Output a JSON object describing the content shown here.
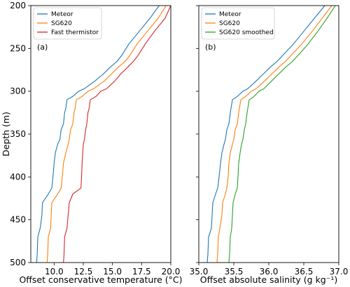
{
  "chart_data": [
    {
      "type": "line",
      "panel_label": "(a)",
      "xlabel": "Offset conservative temperature (°C)",
      "ylabel": "Depth (m)",
      "xlim": [
        8.0,
        20.0
      ],
      "ylim": [
        500,
        200
      ],
      "y_inverted": true,
      "xticks": [
        "10.0",
        "12.5",
        "15.0",
        "17.5",
        "20.0"
      ],
      "xtick_values": [
        10.0,
        12.5,
        15.0,
        17.5,
        20.0
      ],
      "yticks": [
        "200",
        "250",
        "300",
        "350",
        "400",
        "450",
        "500"
      ],
      "ytick_values": [
        200,
        250,
        300,
        350,
        400,
        450,
        500
      ],
      "legend_position": "top-left",
      "series": [
        {
          "name": "Meteor",
          "color": "#1f77b4",
          "points": [
            [
              19.0,
              200
            ],
            [
              18.2,
              215
            ],
            [
              17.3,
              230
            ],
            [
              16.4,
              245
            ],
            [
              15.8,
              258
            ],
            [
              15.4,
              265
            ],
            [
              14.8,
              272
            ],
            [
              14.2,
              280
            ],
            [
              13.5,
              288
            ],
            [
              12.6,
              297
            ],
            [
              12.1,
              300
            ],
            [
              11.6,
              306
            ],
            [
              11.1,
              310
            ],
            [
              11.0,
              320
            ],
            [
              10.9,
              325
            ],
            [
              10.8,
              338
            ],
            [
              10.6,
              345
            ],
            [
              10.5,
              356
            ],
            [
              10.3,
              362
            ],
            [
              10.1,
              372
            ],
            [
              10.0,
              384
            ],
            [
              9.9,
              400
            ],
            [
              9.8,
              413
            ],
            [
              9.5,
              420
            ],
            [
              9.0,
              430
            ],
            [
              8.95,
              445
            ],
            [
              8.8,
              460
            ],
            [
              8.6,
              470
            ],
            [
              8.55,
              490
            ],
            [
              8.5,
              500
            ]
          ]
        },
        {
          "name": "SG620",
          "color": "#ff7f0e",
          "points": [
            [
              19.6,
              200
            ],
            [
              18.9,
              215
            ],
            [
              18.0,
              230
            ],
            [
              17.1,
              245
            ],
            [
              16.5,
              258
            ],
            [
              16.1,
              265
            ],
            [
              15.5,
              272
            ],
            [
              14.9,
              280
            ],
            [
              14.3,
              288
            ],
            [
              13.4,
              297
            ],
            [
              12.9,
              300
            ],
            [
              12.4,
              306
            ],
            [
              11.9,
              310
            ],
            [
              11.8,
              320
            ],
            [
              11.7,
              325
            ],
            [
              11.6,
              338
            ],
            [
              11.4,
              345
            ],
            [
              11.3,
              356
            ],
            [
              11.2,
              362
            ],
            [
              11.0,
              372
            ],
            [
              10.8,
              384
            ],
            [
              10.7,
              400
            ],
            [
              10.6,
              413
            ],
            [
              10.3,
              420
            ],
            [
              9.8,
              430
            ],
            [
              9.75,
              445
            ],
            [
              9.7,
              460
            ],
            [
              9.5,
              470
            ],
            [
              9.45,
              490
            ],
            [
              9.4,
              500
            ]
          ]
        },
        {
          "name": "Fast thermistor",
          "color": "#d62728",
          "points": [
            [
              20.0,
              200
            ],
            [
              19.5,
              215
            ],
            [
              18.6,
              230
            ],
            [
              17.8,
              245
            ],
            [
              17.2,
              258
            ],
            [
              16.8,
              265
            ],
            [
              16.3,
              272
            ],
            [
              15.7,
              280
            ],
            [
              15.2,
              288
            ],
            [
              14.5,
              297
            ],
            [
              14.0,
              300
            ],
            [
              13.6,
              306
            ],
            [
              13.1,
              310
            ],
            [
              13.0,
              320
            ],
            [
              12.9,
              325
            ],
            [
              12.8,
              338
            ],
            [
              12.7,
              345
            ],
            [
              12.6,
              356
            ],
            [
              12.5,
              362
            ],
            [
              12.45,
              372
            ],
            [
              12.4,
              384
            ],
            [
              12.35,
              400
            ],
            [
              12.3,
              413
            ],
            [
              11.6,
              420
            ],
            [
              11.3,
              430
            ],
            [
              11.2,
              445
            ],
            [
              11.1,
              460
            ],
            [
              10.9,
              470
            ],
            [
              10.85,
              490
            ],
            [
              10.8,
              500
            ]
          ]
        }
      ]
    },
    {
      "type": "line",
      "panel_label": "(b)",
      "xlabel": "Offset absolute salinity (g kg⁻¹)",
      "ylabel": "",
      "xlim": [
        35.0,
        37.0
      ],
      "ylim": [
        500,
        200
      ],
      "y_inverted": true,
      "xticks": [
        "35.0",
        "35.5",
        "36.0",
        "36.5",
        "37.0"
      ],
      "xtick_values": [
        35.0,
        35.5,
        36.0,
        36.5,
        37.0
      ],
      "legend_position": "top-left",
      "series": [
        {
          "name": "Meteor",
          "color": "#1f77b4",
          "points": [
            [
              36.8,
              200
            ],
            [
              36.65,
              215
            ],
            [
              36.5,
              230
            ],
            [
              36.35,
              245
            ],
            [
              36.2,
              258
            ],
            [
              36.12,
              265
            ],
            [
              36.02,
              272
            ],
            [
              35.92,
              280
            ],
            [
              35.82,
              288
            ],
            [
              35.7,
              297
            ],
            [
              35.63,
              300
            ],
            [
              35.55,
              306
            ],
            [
              35.48,
              310
            ],
            [
              35.46,
              320
            ],
            [
              35.45,
              325
            ],
            [
              35.43,
              338
            ],
            [
              35.4,
              345
            ],
            [
              35.38,
              356
            ],
            [
              35.36,
              362
            ],
            [
              35.33,
              372
            ],
            [
              35.31,
              384
            ],
            [
              35.29,
              400
            ],
            [
              35.27,
              413
            ],
            [
              35.24,
              420
            ],
            [
              35.2,
              430
            ],
            [
              35.19,
              445
            ],
            [
              35.18,
              460
            ],
            [
              35.14,
              470
            ],
            [
              35.13,
              490
            ],
            [
              35.12,
              500
            ]
          ]
        },
        {
          "name": "SG620",
          "color": "#ff7f0e",
          "points": [
            [
              36.9,
              200
            ],
            [
              36.76,
              215
            ],
            [
              36.62,
              230
            ],
            [
              36.47,
              245
            ],
            [
              36.32,
              258
            ],
            [
              36.24,
              265
            ],
            [
              36.14,
              272
            ],
            [
              36.04,
              280
            ],
            [
              35.94,
              288
            ],
            [
              35.82,
              297
            ],
            [
              35.75,
              300
            ],
            [
              35.67,
              306
            ],
            [
              35.6,
              310
            ],
            [
              35.58,
              320
            ],
            [
              35.57,
              325
            ],
            [
              35.55,
              338
            ],
            [
              35.52,
              345
            ],
            [
              35.5,
              356
            ],
            [
              35.48,
              362
            ],
            [
              35.45,
              372
            ],
            [
              35.43,
              384
            ],
            [
              35.42,
              400
            ],
            [
              35.4,
              413
            ],
            [
              35.38,
              420
            ],
            [
              35.34,
              430
            ],
            [
              35.33,
              445
            ],
            [
              35.3,
              460
            ],
            [
              35.28,
              470
            ],
            [
              35.27,
              490
            ],
            [
              35.26,
              500
            ]
          ]
        },
        {
          "name": "SG620 smoothed",
          "color": "#2ca02c",
          "points": [
            [
              36.95,
              200
            ],
            [
              36.83,
              215
            ],
            [
              36.7,
              230
            ],
            [
              36.56,
              245
            ],
            [
              36.42,
              258
            ],
            [
              36.34,
              265
            ],
            [
              36.24,
              272
            ],
            [
              36.14,
              280
            ],
            [
              36.04,
              288
            ],
            [
              35.93,
              297
            ],
            [
              35.86,
              300
            ],
            [
              35.79,
              306
            ],
            [
              35.72,
              310
            ],
            [
              35.7,
              320
            ],
            [
              35.69,
              325
            ],
            [
              35.67,
              338
            ],
            [
              35.65,
              345
            ],
            [
              35.63,
              356
            ],
            [
              35.61,
              362
            ],
            [
              35.59,
              372
            ],
            [
              35.57,
              384
            ],
            [
              35.56,
              400
            ],
            [
              35.55,
              413
            ],
            [
              35.52,
              420
            ],
            [
              35.49,
              430
            ],
            [
              35.48,
              445
            ],
            [
              35.47,
              460
            ],
            [
              35.45,
              470
            ],
            [
              35.44,
              490
            ],
            [
              35.43,
              500
            ]
          ]
        }
      ]
    }
  ]
}
